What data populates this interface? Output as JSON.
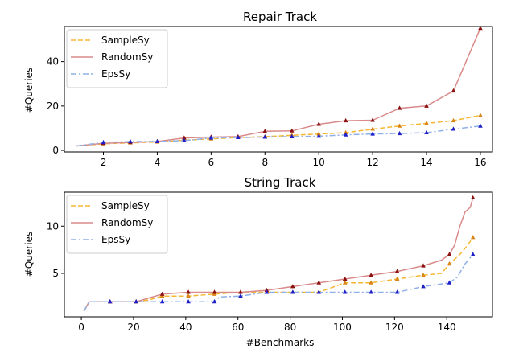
{
  "chart_data": [
    {
      "type": "line",
      "title": "Repair Track",
      "xlabel": "",
      "ylabel": "#Queries",
      "xlim": [
        0.55,
        16.45
      ],
      "ylim": [
        -0.7,
        55.8
      ],
      "xticks": [
        2,
        4,
        6,
        8,
        10,
        12,
        14,
        16
      ],
      "yticks": [
        0,
        20,
        40
      ],
      "legend": "top-left",
      "grid": false,
      "series": [
        {
          "name": "SampleSy",
          "color": "#f5b731",
          "marker_color": "#d98415",
          "dash": "dashed",
          "x": [
            1,
            2,
            3,
            4,
            5,
            6,
            7,
            8,
            9,
            10,
            11,
            12,
            13,
            14,
            15,
            16
          ],
          "y": [
            2.0,
            3.0,
            3.4,
            3.8,
            4.6,
            5.2,
            5.8,
            6.2,
            6.8,
            7.4,
            8.0,
            9.6,
            11.0,
            12.2,
            13.4,
            15.8
          ],
          "markers": [
            2,
            3,
            4,
            5,
            6,
            7,
            8,
            9,
            10,
            11,
            12,
            13,
            14,
            15,
            16
          ]
        },
        {
          "name": "RandomSy",
          "color": "#d98a8a",
          "marker_color": "#8b1010",
          "dash": "solid",
          "x": [
            1,
            2,
            3,
            4,
            5,
            6,
            7,
            8,
            9,
            10,
            11,
            12,
            13,
            14,
            15,
            16
          ],
          "y": [
            2.0,
            3.2,
            3.6,
            4.0,
            5.6,
            6.0,
            6.2,
            8.6,
            8.8,
            11.8,
            13.4,
            13.6,
            19.0,
            20.0,
            26.8,
            55.0
          ],
          "markers": [
            2,
            3,
            4,
            5,
            6,
            7,
            8,
            9,
            10,
            11,
            12,
            13,
            14,
            15,
            16
          ]
        },
        {
          "name": "EpsSy",
          "color": "#8fb0e8",
          "marker_color": "#1f1fc8",
          "dash": "dashdot",
          "x": [
            1,
            2,
            3,
            4,
            5,
            6,
            7,
            8,
            9,
            10,
            11,
            12,
            13,
            14,
            15,
            16
          ],
          "y": [
            2.0,
            3.6,
            4.0,
            4.0,
            4.4,
            5.6,
            5.8,
            6.0,
            6.2,
            6.4,
            7.0,
            7.4,
            7.6,
            8.0,
            9.6,
            11.0
          ],
          "markers": [
            2,
            3,
            4,
            5,
            6,
            7,
            8,
            9,
            10,
            11,
            12,
            13,
            14,
            15,
            16
          ]
        }
      ]
    },
    {
      "type": "line",
      "title": "String Track",
      "xlabel": "#Benchmarks",
      "ylabel": "#Queries",
      "xlim": [
        -6.5,
        157.5
      ],
      "ylim": [
        0.4,
        13.6
      ],
      "xticks": [
        0,
        20,
        40,
        60,
        80,
        100,
        120,
        140
      ],
      "yticks": [
        5,
        10
      ],
      "legend": "top-left",
      "grid": false,
      "series": [
        {
          "name": "SampleSy",
          "color": "#f5b731",
          "marker_color": "#d98415",
          "dash": "dashed",
          "x": [
            1,
            3,
            11,
            21,
            26,
            31,
            41,
            51,
            61,
            71,
            81,
            91,
            101,
            111,
            121,
            131,
            138,
            141,
            145,
            148,
            150
          ],
          "y": [
            1.0,
            2.0,
            2.0,
            2.0,
            2.2,
            2.6,
            2.6,
            2.8,
            3.0,
            3.0,
            3.0,
            3.0,
            4.0,
            4.0,
            4.4,
            4.8,
            5.0,
            6.0,
            7.0,
            8.0,
            8.8
          ],
          "markers": [
            11,
            21,
            31,
            41,
            51,
            61,
            71,
            81,
            91,
            101,
            111,
            121,
            131,
            141,
            150
          ]
        },
        {
          "name": "RandomSy",
          "color": "#d98a8a",
          "marker_color": "#8b1010",
          "dash": "solid",
          "x": [
            1,
            3,
            11,
            21,
            26,
            31,
            41,
            51,
            61,
            71,
            81,
            91,
            101,
            111,
            121,
            131,
            138,
            141,
            143,
            145,
            147,
            149,
            150
          ],
          "y": [
            1.0,
            2.0,
            2.0,
            2.0,
            2.4,
            2.8,
            3.0,
            3.0,
            3.0,
            3.2,
            3.6,
            4.0,
            4.4,
            4.8,
            5.2,
            5.8,
            6.4,
            7.0,
            8.0,
            10.0,
            11.5,
            12.0,
            13.0
          ],
          "markers": [
            11,
            21,
            31,
            41,
            51,
            61,
            71,
            81,
            91,
            101,
            111,
            121,
            131,
            141,
            150
          ]
        },
        {
          "name": "EpsSy",
          "color": "#8fb0e8",
          "marker_color": "#1f1fc8",
          "dash": "dashdot",
          "x": [
            1,
            3,
            11,
            21,
            31,
            41,
            51,
            53,
            61,
            71,
            81,
            91,
            101,
            111,
            121,
            131,
            141,
            144,
            147,
            150
          ],
          "y": [
            1.0,
            2.0,
            2.0,
            2.0,
            2.0,
            2.0,
            2.0,
            2.5,
            2.6,
            3.0,
            3.0,
            3.0,
            3.0,
            3.0,
            3.0,
            3.6,
            4.0,
            4.6,
            6.0,
            7.0
          ],
          "markers": [
            11,
            21,
            31,
            41,
            51,
            61,
            71,
            81,
            91,
            101,
            111,
            121,
            131,
            141,
            150
          ]
        }
      ]
    }
  ]
}
